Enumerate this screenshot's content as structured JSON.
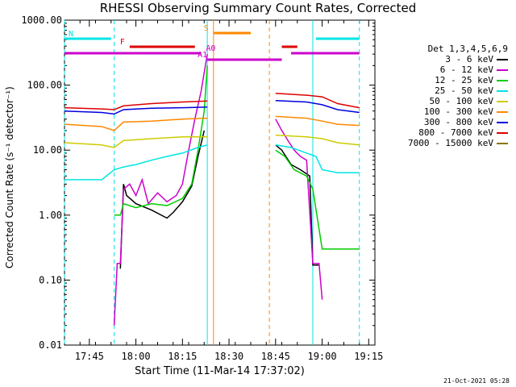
{
  "chart_data": {
    "type": "line",
    "title": "RHESSI Observing Summary Count Rates, Corrected",
    "xlabel": "Start Time (11-Mar-14 17:37:02)",
    "ylabel": "Corrected Count Rate (s⁻¹ detector⁻¹)",
    "y_scale": "log",
    "ylim": [
      0.01,
      1000
    ],
    "xlim": [
      "17:37",
      "19:17"
    ],
    "x_tick_labels": [
      "17:45",
      "18:00",
      "18:15",
      "18:30",
      "18:45",
      "19:00",
      "19:15"
    ],
    "y_tick_labels": [
      "0.01",
      "0.10",
      "1.00",
      "10.00",
      "100.00",
      "1000.00"
    ],
    "legend_title": "Det 1,3,4,5,6,9",
    "legend_position": "right",
    "grid": false,
    "series": [
      {
        "name": "3 - 6 keV",
        "color": "#000000",
        "x": [
          "17:55",
          "17:56",
          "17:57",
          "18:00",
          "18:05",
          "18:10",
          "18:12",
          "18:15",
          "18:18",
          "18:20",
          "18:22",
          "18:45",
          "18:47",
          "18:50",
          "18:53",
          "18:56",
          "18:57",
          "18:59"
        ],
        "y": [
          0.15,
          3.0,
          2.0,
          1.5,
          1.2,
          0.9,
          1.1,
          1.6,
          2.8,
          8.0,
          20.0,
          12.0,
          10.0,
          6.0,
          5.0,
          4.0,
          0.17,
          0.17
        ]
      },
      {
        "name": "6 - 12 keV",
        "color": "#cc00cc",
        "x": [
          "17:53",
          "17:54",
          "17:55",
          "17:56",
          "17:58",
          "18:00",
          "18:02",
          "18:04",
          "18:07",
          "18:10",
          "18:13",
          "18:15",
          "18:17",
          "18:19",
          "18:21",
          "18:23",
          "18:45",
          "18:47",
          "18:49",
          "18:51",
          "18:53",
          "18:55",
          "18:57",
          "18:59",
          "19:00"
        ],
        "y": [
          0.02,
          0.18,
          0.18,
          2.5,
          3.0,
          2.0,
          3.5,
          1.5,
          2.2,
          1.6,
          2.0,
          3.0,
          10.0,
          30.0,
          80.0,
          300.0,
          30.0,
          20.0,
          14.0,
          10.0,
          8.0,
          7.0,
          0.18,
          0.18,
          0.05
        ]
      },
      {
        "name": "12 - 25 keV",
        "color": "#00cc00",
        "x": [
          "17:53",
          "17:55",
          "17:56",
          "18:00",
          "18:05",
          "18:10",
          "18:15",
          "18:18",
          "18:20",
          "18:22",
          "18:23",
          "18:45",
          "18:48",
          "18:51",
          "18:55",
          "18:57",
          "19:00",
          "19:12"
        ],
        "y": [
          1.0,
          1.0,
          1.5,
          1.3,
          1.5,
          1.4,
          1.8,
          3.0,
          10.0,
          40.0,
          200.0,
          10.0,
          8.0,
          5.0,
          4.0,
          2.5,
          0.3,
          0.3
        ]
      },
      {
        "name": "25 - 50 keV",
        "color": "#00e5e5",
        "x": [
          "17:37",
          "17:42",
          "17:49",
          "17:53",
          "17:56",
          "18:00",
          "18:05",
          "18:10",
          "18:15",
          "18:20",
          "18:23",
          "18:45",
          "18:50",
          "18:55",
          "18:58",
          "19:00",
          "19:05",
          "19:12"
        ],
        "y": [
          3.5,
          3.5,
          3.5,
          5.0,
          5.5,
          6.0,
          7.0,
          8.0,
          9.0,
          11.0,
          12.0,
          12.0,
          11.0,
          9.0,
          8.0,
          5.0,
          4.5,
          4.5
        ]
      },
      {
        "name": "50 - 100 keV",
        "color": "#cccc00",
        "x": [
          "17:37",
          "17:49",
          "17:53",
          "17:56",
          "18:05",
          "18:15",
          "18:23",
          "18:45",
          "18:55",
          "19:00",
          "19:05",
          "19:12"
        ],
        "y": [
          13.0,
          12.0,
          11.0,
          14.0,
          15.0,
          16.0,
          16.0,
          17.0,
          16.0,
          15.0,
          13.0,
          12.0
        ]
      },
      {
        "name": "100 - 300 keV",
        "color": "#ff8800",
        "x": [
          "17:37",
          "17:49",
          "17:53",
          "17:56",
          "18:05",
          "18:15",
          "18:23",
          "18:45",
          "18:55",
          "19:00",
          "19:05",
          "19:12"
        ],
        "y": [
          25.0,
          23.0,
          20.0,
          27.0,
          28.0,
          30.0,
          31.0,
          33.0,
          31.0,
          28.0,
          25.0,
          24.0
        ]
      },
      {
        "name": "300 - 800 keV",
        "color": "#0000dd",
        "x": [
          "17:37",
          "17:49",
          "17:53",
          "17:56",
          "18:05",
          "18:15",
          "18:23",
          "18:45",
          "18:55",
          "19:00",
          "19:05",
          "19:12"
        ],
        "y": [
          40.0,
          38.0,
          36.0,
          42.0,
          44.0,
          45.0,
          46.0,
          58.0,
          55.0,
          50.0,
          42.0,
          38.0
        ]
      },
      {
        "name": "800 - 7000 keV",
        "color": "#dd0000",
        "x": [
          "17:37",
          "17:49",
          "17:53",
          "17:56",
          "18:05",
          "18:15",
          "18:23",
          "18:45",
          "18:55",
          "19:00",
          "19:05",
          "19:12"
        ],
        "y": [
          45.0,
          43.0,
          42.0,
          48.0,
          52.0,
          55.0,
          57.0,
          75.0,
          70.0,
          66.0,
          52.0,
          45.0
        ]
      },
      {
        "name": "7000 - 15000 keV",
        "color": "#887700",
        "x": [],
        "y": []
      }
    ],
    "flag_bars": [
      {
        "label": "N",
        "color": "#00e5e5",
        "ranges": [
          [
            "17:37",
            "17:52"
          ],
          [
            "18:58",
            "19:12"
          ]
        ]
      },
      {
        "label": "F",
        "color": "#dd0000",
        "ranges": [
          [
            "17:58",
            "18:19"
          ],
          [
            "18:47",
            "18:52"
          ]
        ]
      },
      {
        "label": "S",
        "color": "#ff8800",
        "ranges": [
          [
            "18:25",
            "18:37"
          ]
        ]
      },
      {
        "label": "A0",
        "color": "#cc00cc",
        "ranges": [
          [
            "17:37",
            "18:21"
          ],
          [
            "18:50",
            "19:12"
          ]
        ]
      },
      {
        "label": "A1",
        "color": "#cc00cc",
        "ranges": [
          [
            "18:23",
            "18:47"
          ]
        ]
      }
    ],
    "vertical_markers": [
      {
        "color": "#00e5e5",
        "style": "dashed",
        "x": [
          "17:37",
          "17:53",
          "19:12"
        ]
      },
      {
        "color": "#00e5e5",
        "style": "solid",
        "x": [
          "18:23",
          "18:57"
        ]
      },
      {
        "color": "#ff8800",
        "style": "solid",
        "x": [
          "18:25"
        ]
      },
      {
        "color": "#ff8800",
        "style": "dashed",
        "x": [
          "18:43"
        ]
      }
    ],
    "gaps": [
      [
        "18:23",
        "18:45"
      ]
    ]
  },
  "footer": {
    "timestamp": "21-Oct-2021 05:28"
  }
}
